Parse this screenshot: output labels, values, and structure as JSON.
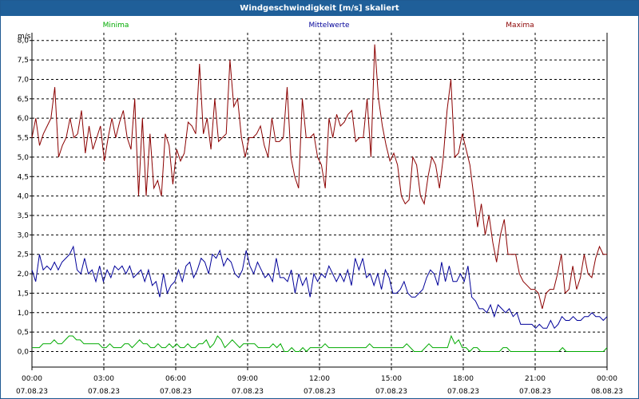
{
  "window": {
    "title": "Windgeschwindigkeit [m/s] skaliert"
  },
  "chart_data": {
    "type": "line",
    "title": "Windgeschwindigkeit [m/s] skaliert",
    "ylabel": "m/s",
    "ylim": [
      -0.4,
      8.2
    ],
    "grid": true,
    "legend_position": "top",
    "y_ticks": [
      "0,0",
      "0,5",
      "1,0",
      "1,5",
      "2,0",
      "2,5",
      "3,0",
      "3,5",
      "4,0",
      "4,5",
      "5,0",
      "5,5",
      "6,0",
      "6,5",
      "7,0",
      "7,5",
      "8,0"
    ],
    "x_ticks": [
      {
        "time": "00:00",
        "date": "07.08.23"
      },
      {
        "time": "03:00",
        "date": "07.08.23"
      },
      {
        "time": "06:00",
        "date": "07.08.23"
      },
      {
        "time": "09:00",
        "date": "07.08.23"
      },
      {
        "time": "12:00",
        "date": "07.08.23"
      },
      {
        "time": "15:00",
        "date": "07.08.23"
      },
      {
        "time": "18:00",
        "date": "07.08.23"
      },
      {
        "time": "21:00",
        "date": "07.08.23"
      },
      {
        "time": "00:00",
        "date": "08.08.23"
      }
    ],
    "x_hours_range": [
      0,
      24
    ],
    "series": [
      {
        "name": "Maxima",
        "color": "#8b0000",
        "values": [
          5.5,
          6.0,
          5.3,
          5.6,
          5.8,
          6.0,
          6.8,
          5.0,
          5.3,
          5.5,
          6.0,
          5.5,
          5.6,
          6.2,
          5.1,
          5.8,
          5.2,
          5.5,
          5.8,
          4.9,
          5.5,
          6.0,
          5.5,
          5.9,
          6.2,
          5.5,
          5.2,
          6.5,
          4.0,
          6.0,
          4.0,
          5.6,
          4.2,
          4.4,
          4.0,
          5.6,
          5.3,
          4.3,
          5.2,
          4.9,
          5.1,
          5.9,
          5.8,
          5.6,
          7.4,
          5.6,
          6.0,
          5.2,
          6.5,
          5.4,
          5.5,
          5.6,
          7.5,
          6.3,
          6.5,
          5.5,
          5.0,
          5.5,
          5.5,
          5.6,
          5.8,
          5.3,
          5.0,
          6.0,
          5.4,
          5.4,
          5.5,
          6.8,
          5.0,
          4.5,
          4.2,
          6.5,
          5.5,
          5.5,
          5.6,
          5.0,
          4.8,
          4.2,
          6.0,
          5.5,
          6.1,
          5.8,
          5.9,
          6.1,
          6.2,
          5.4,
          5.5,
          5.5,
          6.5,
          5.0,
          7.9,
          6.5,
          5.8,
          5.3,
          4.9,
          5.1,
          4.8,
          4.0,
          3.8,
          3.9,
          5.0,
          4.8,
          4.0,
          3.8,
          4.5,
          5.0,
          4.8,
          4.2,
          5.0,
          6.2,
          7.0,
          5.0,
          5.1,
          5.6,
          5.2,
          4.8,
          4.0,
          3.2,
          3.8,
          3.0,
          3.5,
          2.8,
          2.3,
          3.0,
          3.4,
          2.5,
          2.5,
          2.5,
          2.0,
          1.8,
          1.7,
          1.6,
          1.6,
          1.5,
          1.1,
          1.5,
          1.6,
          1.6,
          2.0,
          2.5,
          1.5,
          1.6,
          2.2,
          1.6,
          1.9,
          2.5,
          2.0,
          1.9,
          2.4,
          2.7,
          2.5,
          2.5
        ]
      },
      {
        "name": "Mittelwerte",
        "color": "#000099",
        "values": [
          2.1,
          1.8,
          2.5,
          2.1,
          2.2,
          2.1,
          2.3,
          2.1,
          2.3,
          2.4,
          2.5,
          2.7,
          2.1,
          2.0,
          2.4,
          2.0,
          2.1,
          1.8,
          2.2,
          1.8,
          2.1,
          1.9,
          2.2,
          2.1,
          2.2,
          2.0,
          2.2,
          1.9,
          2.0,
          2.1,
          1.8,
          2.1,
          1.7,
          1.8,
          1.4,
          2.0,
          1.5,
          1.7,
          1.8,
          2.1,
          1.8,
          2.2,
          2.3,
          1.9,
          2.1,
          2.4,
          2.3,
          2.0,
          2.5,
          2.4,
          2.6,
          2.2,
          2.4,
          2.3,
          2.0,
          1.9,
          2.1,
          2.6,
          2.2,
          2.0,
          2.3,
          2.1,
          1.9,
          2.0,
          1.8,
          2.4,
          1.9,
          1.9,
          1.8,
          2.1,
          1.5,
          2.0,
          1.7,
          1.9,
          1.4,
          2.0,
          1.8,
          2.0,
          1.9,
          2.2,
          2.0,
          1.8,
          2.0,
          1.8,
          2.1,
          1.7,
          2.4,
          2.1,
          2.4,
          1.9,
          2.0,
          1.7,
          2.0,
          1.6,
          2.1,
          1.9,
          1.5,
          1.5,
          1.6,
          1.8,
          1.5,
          1.4,
          1.4,
          1.5,
          1.6,
          1.9,
          2.1,
          2.0,
          1.7,
          2.3,
          1.8,
          2.2,
          1.8,
          1.8,
          2.0,
          1.8,
          2.2,
          1.4,
          1.3,
          1.1,
          1.1,
          1.0,
          1.2,
          0.9,
          1.2,
          1.1,
          1.0,
          1.1,
          0.9,
          1.0,
          0.7,
          0.7,
          0.7,
          0.7,
          0.6,
          0.7,
          0.6,
          0.6,
          0.8,
          0.6,
          0.7,
          0.9,
          0.8,
          0.8,
          0.9,
          0.8,
          0.8,
          0.9,
          0.9,
          1.0,
          0.9,
          0.9,
          0.8,
          0.9
        ]
      },
      {
        "name": "Minima",
        "color": "#00aa00",
        "values": [
          0.1,
          0.1,
          0.1,
          0.2,
          0.2,
          0.2,
          0.3,
          0.2,
          0.2,
          0.3,
          0.4,
          0.4,
          0.3,
          0.3,
          0.2,
          0.2,
          0.2,
          0.2,
          0.2,
          0.1,
          0.1,
          0.2,
          0.1,
          0.1,
          0.1,
          0.2,
          0.2,
          0.1,
          0.2,
          0.3,
          0.2,
          0.2,
          0.1,
          0.1,
          0.2,
          0.1,
          0.1,
          0.2,
          0.1,
          0.2,
          0.1,
          0.1,
          0.2,
          0.1,
          0.1,
          0.2,
          0.2,
          0.3,
          0.1,
          0.2,
          0.4,
          0.3,
          0.1,
          0.2,
          0.3,
          0.2,
          0.1,
          0.2,
          0.2,
          0.2,
          0.2,
          0.1,
          0.1,
          0.1,
          0.1,
          0.2,
          0.1,
          0.2,
          0.0,
          0.0,
          0.1,
          0.0,
          0.0,
          0.1,
          0.0,
          0.1,
          0.1,
          0.1,
          0.1,
          0.2,
          0.1,
          0.1,
          0.1,
          0.1,
          0.1,
          0.1,
          0.1,
          0.1,
          0.1,
          0.1,
          0.1,
          0.2,
          0.1,
          0.1,
          0.1,
          0.1,
          0.1,
          0.1,
          0.1,
          0.1,
          0.1,
          0.2,
          0.1,
          0.0,
          0.0,
          0.0,
          0.1,
          0.2,
          0.1,
          0.1,
          0.1,
          0.1,
          0.1,
          0.4,
          0.2,
          0.3,
          0.1,
          0.1,
          0.0,
          0.1,
          0.1,
          0.0,
          0.0,
          0.0,
          0.0,
          0.0,
          0.0,
          0.1,
          0.1,
          0.0,
          0.0,
          0.0,
          0.0,
          0.0,
          0.0,
          0.0,
          0.0,
          0.0,
          0.0,
          0.0,
          0.0,
          0.0,
          0.0,
          0.1,
          0.0,
          0.0,
          0.0,
          0.0,
          0.0,
          0.0,
          0.0,
          0.0,
          0.0,
          0.0,
          0.0,
          0.1
        ]
      }
    ]
  }
}
